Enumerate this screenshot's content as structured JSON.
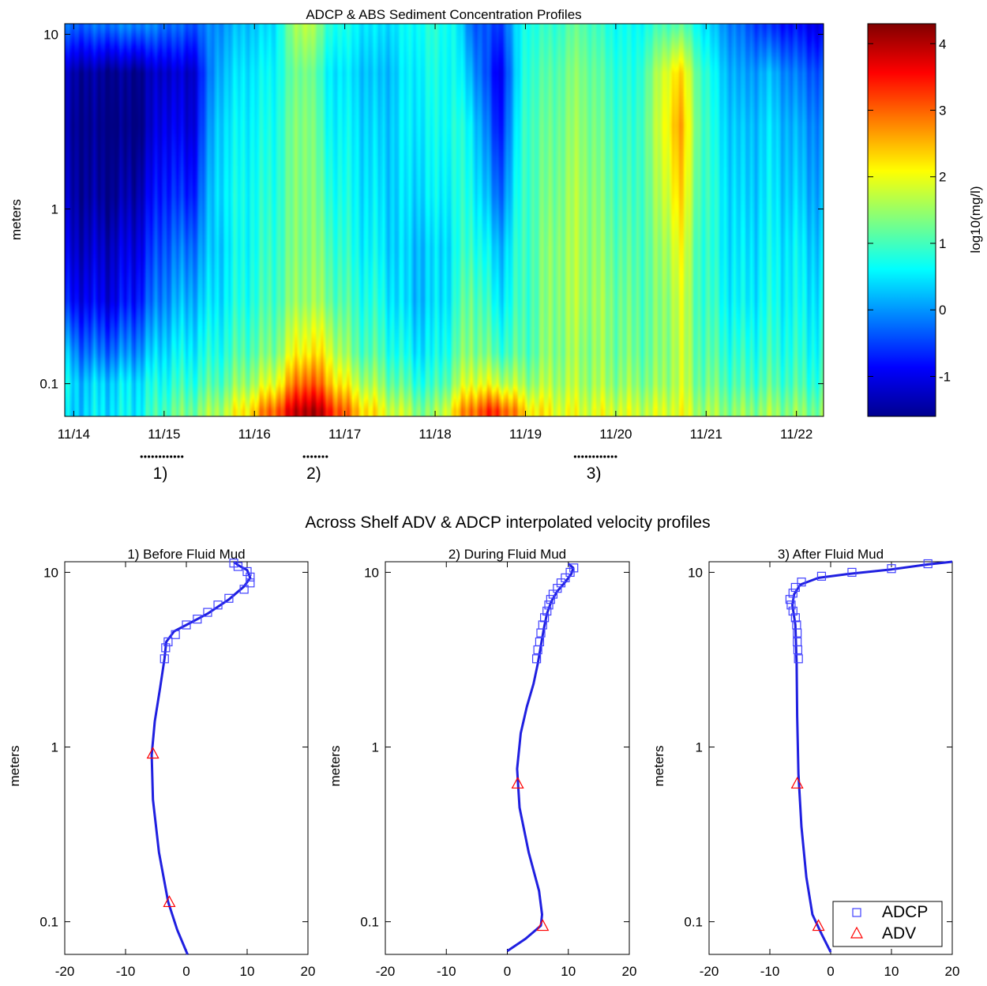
{
  "figure": {
    "section_title": "Across Shelf ADV & ADCP interpolated velocity profiles"
  },
  "colorbar": {
    "label": "log10(mg/l)",
    "ticks": [
      "-1",
      "0",
      "1",
      "2",
      "3",
      "4"
    ],
    "range": [
      -1.6,
      4.3
    ]
  },
  "chart_data": [
    {
      "type": "heatmap",
      "title": "ADCP & ABS Sediment Concentration Profiles",
      "xlabel": "",
      "ylabel": "meters",
      "yscale": "log",
      "ylim": [
        0.065,
        11.5
      ],
      "xlim": [
        13.9,
        22.3
      ],
      "x_tick_labels": [
        "11/14",
        "11/15",
        "11/16",
        "11/17",
        "11/18",
        "11/19",
        "11/20",
        "11/21",
        "11/22"
      ],
      "y_tick_labels": [
        "0.1",
        "1",
        "10"
      ],
      "value_units": "log10(mg/l)",
      "time_columns": [
        {
          "t": 13.9,
          "v": [
            0.3,
            0.5,
            0.2,
            -0.8,
            -1.1,
            -1.3,
            -1.4,
            -1.3,
            -0.3
          ]
        },
        {
          "t": 14.1,
          "v": [
            0.4,
            0.3,
            -0.2,
            -0.9,
            -1.2,
            -1.4,
            -1.5,
            -1.4,
            -0.3
          ]
        },
        {
          "t": 14.4,
          "v": [
            0.5,
            0.4,
            -0.2,
            -1.0,
            -1.2,
            -1.5,
            -1.6,
            -1.5,
            -0.2
          ]
        },
        {
          "t": 14.7,
          "v": [
            0.6,
            0.5,
            0.0,
            -0.7,
            -1.0,
            -1.3,
            -1.6,
            -1.5,
            -0.1
          ]
        },
        {
          "t": 15.0,
          "v": [
            1.1,
            0.8,
            0.5,
            0.0,
            -0.3,
            -0.6,
            -0.9,
            -1.1,
            -0.2
          ]
        },
        {
          "t": 15.3,
          "v": [
            1.3,
            0.9,
            0.6,
            0.2,
            -0.2,
            -0.7,
            -1.1,
            -1.2,
            -0.4
          ]
        },
        {
          "t": 15.6,
          "v": [
            1.6,
            1.1,
            0.8,
            0.5,
            0.4,
            0.5,
            0.4,
            0.2,
            0.0
          ]
        },
        {
          "t": 15.9,
          "v": [
            2.2,
            1.5,
            1.1,
            0.8,
            0.7,
            0.7,
            0.6,
            0.5,
            0.3
          ]
        },
        {
          "t": 16.2,
          "v": [
            3.0,
            1.9,
            1.3,
            1.0,
            0.9,
            0.8,
            0.7,
            0.6,
            0.4
          ]
        },
        {
          "t": 16.45,
          "v": [
            3.8,
            2.8,
            2.0,
            1.4,
            1.3,
            1.3,
            1.3,
            1.2,
            1.5
          ]
        },
        {
          "t": 16.6,
          "v": [
            4.2,
            3.2,
            2.3,
            1.6,
            1.5,
            1.5,
            1.5,
            1.4,
            1.8
          ]
        },
        {
          "t": 16.8,
          "v": [
            3.6,
            2.6,
            2.0,
            1.3,
            1.1,
            0.9,
            0.7,
            0.6,
            0.9
          ]
        },
        {
          "t": 17.1,
          "v": [
            2.6,
            1.8,
            1.2,
            0.9,
            0.7,
            0.6,
            0.5,
            0.4,
            0.6
          ]
        },
        {
          "t": 17.4,
          "v": [
            2.0,
            1.4,
            1.0,
            0.7,
            0.5,
            0.4,
            0.3,
            0.2,
            0.4
          ]
        },
        {
          "t": 17.7,
          "v": [
            1.6,
            1.0,
            0.6,
            0.3,
            0.3,
            0.4,
            0.5,
            0.5,
            0.6
          ]
        },
        {
          "t": 17.95,
          "v": [
            1.3,
            0.8,
            0.5,
            0.3,
            0.3,
            0.5,
            0.6,
            0.7,
            0.8
          ]
        },
        {
          "t": 18.2,
          "v": [
            2.2,
            1.4,
            1.0,
            0.7,
            0.6,
            0.7,
            0.8,
            0.7,
            0.7
          ]
        },
        {
          "t": 18.4,
          "v": [
            3.0,
            2.0,
            1.5,
            1.3,
            1.0,
            0.8,
            0.6,
            0.2,
            -0.2
          ]
        },
        {
          "t": 18.7,
          "v": [
            3.3,
            1.8,
            1.0,
            0.5,
            0.2,
            -0.3,
            -0.8,
            -1.0,
            -0.6
          ]
        },
        {
          "t": 19.0,
          "v": [
            2.3,
            1.5,
            1.1,
            1.0,
            1.0,
            1.0,
            1.0,
            0.9,
            0.8
          ]
        },
        {
          "t": 19.3,
          "v": [
            2.0,
            1.6,
            1.4,
            1.4,
            1.4,
            1.3,
            1.2,
            1.1,
            0.9
          ]
        },
        {
          "t": 19.6,
          "v": [
            1.9,
            1.6,
            1.5,
            1.6,
            1.6,
            1.6,
            1.5,
            1.4,
            1.2
          ]
        },
        {
          "t": 19.9,
          "v": [
            1.9,
            1.5,
            1.4,
            1.4,
            1.3,
            1.2,
            1.1,
            1.0,
            0.8
          ]
        },
        {
          "t": 20.2,
          "v": [
            1.8,
            1.4,
            1.2,
            1.1,
            1.0,
            0.9,
            0.8,
            0.7,
            0.6
          ]
        },
        {
          "t": 20.5,
          "v": [
            1.8,
            1.4,
            1.3,
            1.3,
            1.4,
            1.6,
            1.8,
            1.7,
            1.0
          ]
        },
        {
          "t": 20.7,
          "v": [
            2.0,
            1.8,
            1.8,
            1.9,
            2.1,
            2.4,
            2.7,
            2.4,
            1.2
          ]
        },
        {
          "t": 20.9,
          "v": [
            1.6,
            1.3,
            1.2,
            1.1,
            1.1,
            1.2,
            1.3,
            1.2,
            0.7
          ]
        },
        {
          "t": 21.1,
          "v": [
            1.5,
            1.2,
            1.0,
            0.8,
            0.7,
            0.7,
            0.6,
            0.5,
            0.2
          ]
        },
        {
          "t": 21.4,
          "v": [
            1.4,
            1.0,
            0.8,
            0.5,
            0.4,
            0.3,
            0.2,
            0.0,
            -0.3
          ]
        },
        {
          "t": 21.7,
          "v": [
            1.5,
            1.1,
            0.9,
            0.7,
            0.6,
            0.5,
            0.4,
            0.2,
            -0.6
          ]
        },
        {
          "t": 22.0,
          "v": [
            1.4,
            1.0,
            0.8,
            0.6,
            0.5,
            0.3,
            0.1,
            -0.2,
            -0.8
          ]
        },
        {
          "t": 22.3,
          "v": [
            1.3,
            0.9,
            0.7,
            0.5,
            0.3,
            0.1,
            -0.1,
            -0.4,
            -1.0
          ]
        }
      ],
      "depth_rows": [
        0.07,
        0.1,
        0.15,
        0.3,
        0.6,
        1.2,
        3,
        6,
        11
      ],
      "period_markers": [
        {
          "label": "1)",
          "t_start": 14.75,
          "t_end": 15.2
        },
        {
          "label": "2)",
          "t_start": 16.55,
          "t_end": 16.8
        },
        {
          "label": "3)",
          "t_start": 19.55,
          "t_end": 20.0
        }
      ]
    },
    {
      "type": "line",
      "title": "1) Before Fluid Mud",
      "ylabel": "meters",
      "yscale": "log",
      "xlim": [
        -20,
        20
      ],
      "ylim": [
        0.065,
        11.5
      ],
      "x_tick_labels": [
        "-20",
        "-10",
        "0",
        "10",
        "20"
      ],
      "y_tick_labels": [
        "0.1",
        "1",
        "10"
      ],
      "series": [
        {
          "name": "",
          "style": "line",
          "points": [
            [
              0.2,
              0.065
            ],
            [
              -1.5,
              0.09
            ],
            [
              -3,
              0.13
            ],
            [
              -4.5,
              0.25
            ],
            [
              -5.5,
              0.5
            ],
            [
              -5.7,
              0.9
            ],
            [
              -5.2,
              1.4
            ],
            [
              -4.3,
              2.2
            ],
            [
              -3.6,
              3.2
            ],
            [
              -3.3,
              4.0
            ],
            [
              -2,
              4.6
            ],
            [
              0,
              5.0
            ],
            [
              3.5,
              5.8
            ],
            [
              7,
              7.0
            ],
            [
              9.5,
              8.3
            ],
            [
              10.5,
              9.3
            ],
            [
              10,
              10.3
            ],
            [
              8.5,
              11.0
            ],
            [
              7.8,
              11.5
            ]
          ]
        },
        {
          "name": "ADCP",
          "style": "square",
          "points": [
            [
              -3.6,
              3.2
            ],
            [
              -3.4,
              3.7
            ],
            [
              -3.0,
              4.0
            ],
            [
              -1.8,
              4.4
            ],
            [
              0,
              5.0
            ],
            [
              1.8,
              5.4
            ],
            [
              3.5,
              5.9
            ],
            [
              5.2,
              6.5
            ],
            [
              7.0,
              7.1
            ],
            [
              9.5,
              8.0
            ],
            [
              10.5,
              8.7
            ],
            [
              10.5,
              9.4
            ],
            [
              10,
              10.1
            ],
            [
              8.5,
              10.8
            ],
            [
              7.8,
              11.3
            ]
          ]
        },
        {
          "name": "ADV",
          "style": "triangle",
          "points": [
            [
              -5.5,
              0.92
            ],
            [
              -2.8,
              0.13
            ]
          ]
        }
      ]
    },
    {
      "type": "line",
      "title": "2) During Fluid Mud",
      "ylabel": "meters",
      "yscale": "log",
      "xlim": [
        -20,
        20
      ],
      "ylim": [
        0.065,
        11.5
      ],
      "x_tick_labels": [
        "-20",
        "-10",
        "0",
        "10",
        "20"
      ],
      "y_tick_labels": [
        "0.1",
        "1",
        "10"
      ],
      "series": [
        {
          "name": "",
          "style": "line",
          "points": [
            [
              0,
              0.068
            ],
            [
              3,
              0.08
            ],
            [
              5.5,
              0.095
            ],
            [
              5.7,
              0.11
            ],
            [
              5.2,
              0.15
            ],
            [
              3.5,
              0.25
            ],
            [
              2,
              0.45
            ],
            [
              1.6,
              0.75
            ],
            [
              2.2,
              1.2
            ],
            [
              3.2,
              1.7
            ],
            [
              4.3,
              2.3
            ],
            [
              5,
              3.0
            ],
            [
              5.5,
              3.8
            ],
            [
              6,
              4.8
            ],
            [
              6.5,
              5.8
            ],
            [
              7.2,
              6.8
            ],
            [
              8.2,
              7.8
            ],
            [
              9.5,
              8.8
            ],
            [
              10.5,
              9.8
            ],
            [
              10.8,
              10.6
            ],
            [
              10,
              11.2
            ]
          ]
        },
        {
          "name": "ADCP",
          "style": "square",
          "points": [
            [
              4.8,
              3.2
            ],
            [
              5.0,
              3.6
            ],
            [
              5.3,
              4.0
            ],
            [
              5.5,
              4.5
            ],
            [
              5.8,
              5.0
            ],
            [
              6.1,
              5.5
            ],
            [
              6.5,
              6.0
            ],
            [
              6.8,
              6.5
            ],
            [
              7.1,
              7.0
            ],
            [
              7.5,
              7.5
            ],
            [
              8.2,
              8.1
            ],
            [
              8.8,
              8.7
            ],
            [
              9.5,
              9.3
            ],
            [
              10.3,
              10.0
            ],
            [
              10.9,
              10.6
            ]
          ]
        },
        {
          "name": "ADV",
          "style": "triangle",
          "points": [
            [
              1.7,
              0.62
            ],
            [
              5.8,
              0.095
            ]
          ]
        }
      ]
    },
    {
      "type": "line",
      "title": "3) After Fluid Mud",
      "ylabel": "meters",
      "yscale": "log",
      "xlim": [
        -20,
        20
      ],
      "ylim": [
        0.065,
        11.5
      ],
      "x_tick_labels": [
        "-20",
        "-10",
        "0",
        "10",
        "20"
      ],
      "y_tick_labels": [
        "0.1",
        "1",
        "10"
      ],
      "legend": {
        "position": "bottom-right",
        "entries": [
          "ADCP",
          "ADV"
        ]
      },
      "series": [
        {
          "name": "",
          "style": "line",
          "points": [
            [
              0,
              0.067
            ],
            [
              -1.5,
              0.085
            ],
            [
              -3,
              0.11
            ],
            [
              -4,
              0.18
            ],
            [
              -4.8,
              0.35
            ],
            [
              -5.3,
              0.7
            ],
            [
              -5.5,
              1.5
            ],
            [
              -5.6,
              3
            ],
            [
              -5.8,
              5
            ],
            [
              -6.3,
              6.5
            ],
            [
              -6,
              7.5
            ],
            [
              -5,
              8.5
            ],
            [
              -2,
              9.3
            ],
            [
              3,
              9.8
            ],
            [
              10,
              10.4
            ],
            [
              16,
              11.1
            ],
            [
              20,
              11.5
            ]
          ]
        },
        {
          "name": "ADCP",
          "style": "square",
          "points": [
            [
              -5.3,
              3.2
            ],
            [
              -5.4,
              3.6
            ],
            [
              -5.5,
              4.0
            ],
            [
              -5.5,
              4.5
            ],
            [
              -5.6,
              5.0
            ],
            [
              -5.8,
              5.5
            ],
            [
              -6.2,
              6.0
            ],
            [
              -6.5,
              6.5
            ],
            [
              -6.7,
              7.0
            ],
            [
              -6.2,
              7.6
            ],
            [
              -5.8,
              8.2
            ],
            [
              -4.8,
              8.8
            ],
            [
              -1.5,
              9.5
            ],
            [
              3.5,
              10.0
            ],
            [
              10,
              10.5
            ],
            [
              16,
              11.2
            ]
          ]
        },
        {
          "name": "ADV",
          "style": "triangle",
          "points": [
            [
              -5.5,
              0.62
            ],
            [
              -2.0,
              0.095
            ]
          ]
        }
      ]
    }
  ]
}
